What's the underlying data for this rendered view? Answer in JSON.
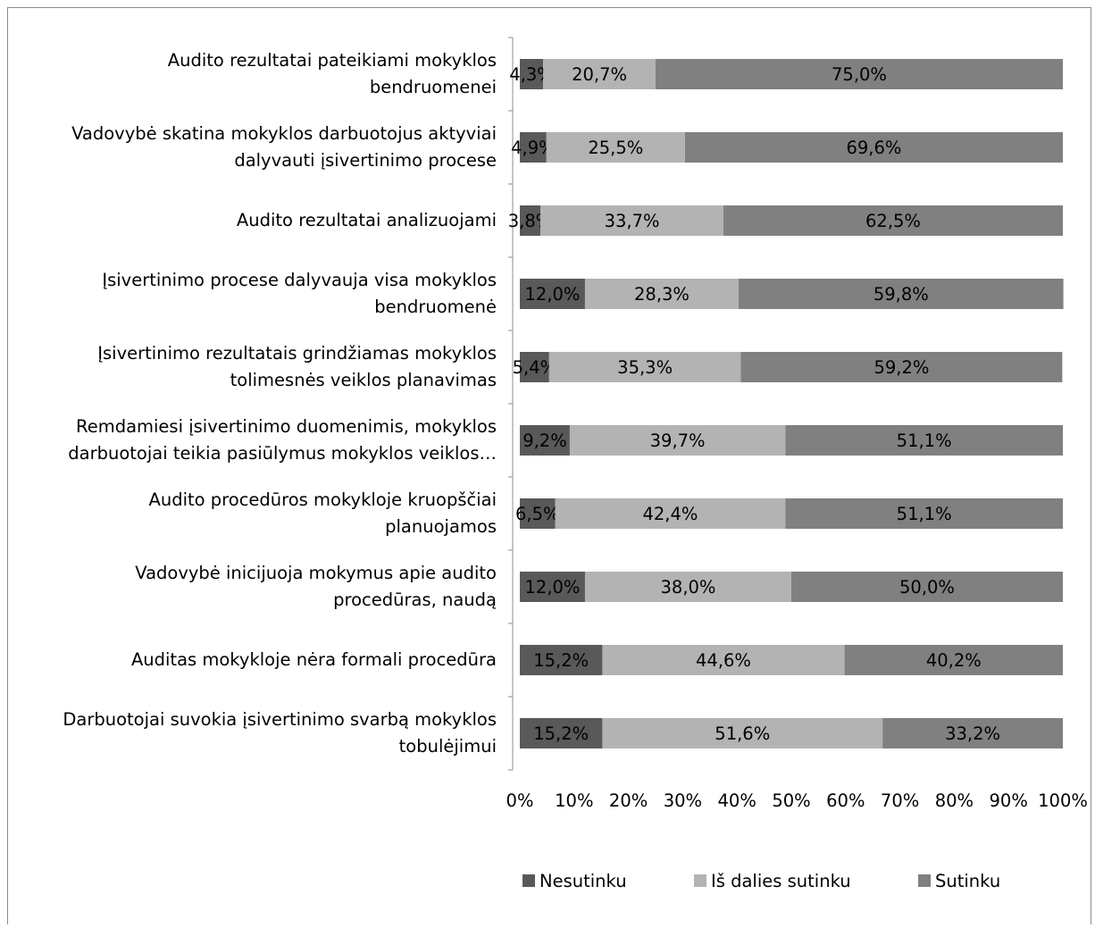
{
  "chart_data": {
    "type": "bar",
    "orientation": "horizontal",
    "stacked": "percent",
    "categories": [
      [
        "Audito rezultatai pateikiami mokyklos",
        "bendruomenei"
      ],
      [
        "Vadovybė skatina mokyklos darbuotojus aktyviai",
        "dalyvauti įsivertinimo procese"
      ],
      [
        "Audito rezultatai analizuojami"
      ],
      [
        "Įsivertinimo procese dalyvauja visa mokyklos",
        "bendruomenė"
      ],
      [
        "Įsivertinimo rezultatais grindžiamas mokyklos",
        "tolimesnės veiklos planavimas"
      ],
      [
        "Remdamiesi įsivertinimo duomenimis, mokyklos",
        "darbuotojai teikia pasiūlymus mokyklos veiklos…"
      ],
      [
        "Audito procedūros mokykloje kruopščiai",
        "planuojamos"
      ],
      [
        "Vadovybė inicijuoja mokymus apie audito",
        "procedūras, naudą"
      ],
      [
        "Auditas mokykloje nėra formali procedūra"
      ],
      [
        "Darbuotojai suvokia įsivertinimo svarbą mokyklos",
        "tobulėjimui"
      ]
    ],
    "series": [
      {
        "name": "Nesutinku",
        "color": "#595959",
        "values": [
          4.3,
          4.9,
          3.8,
          12.0,
          5.4,
          9.2,
          6.5,
          12.0,
          15.2,
          15.2
        ],
        "labels": [
          "4,3%",
          "4,9%",
          "3,8%",
          "12,0%",
          "5,4%",
          "9,2%",
          "6,5%",
          "12,0%",
          "15,2%",
          "15,2%"
        ]
      },
      {
        "name": "Iš dalies sutinku",
        "color": "#b3b3b3",
        "values": [
          20.7,
          25.5,
          33.7,
          28.3,
          35.3,
          39.7,
          42.4,
          38.0,
          44.6,
          51.6
        ],
        "labels": [
          "20,7%",
          "25,5%",
          "33,7%",
          "28,3%",
          "35,3%",
          "39,7%",
          "42,4%",
          "38,0%",
          "44,6%",
          "51,6%"
        ]
      },
      {
        "name": "Sutinku",
        "color": "#808080",
        "values": [
          75.0,
          69.6,
          62.5,
          59.8,
          59.2,
          51.1,
          51.1,
          50.0,
          40.2,
          33.2
        ],
        "labels": [
          "75,0%",
          "69,6%",
          "62,5%",
          "59,8%",
          "59,2%",
          "51,1%",
          "51,1%",
          "50,0%",
          "40,2%",
          "33,2%"
        ]
      }
    ],
    "xlim": [
      0,
      100
    ],
    "xticks": [
      "0%",
      "10%",
      "20%",
      "30%",
      "40%",
      "50%",
      "60%",
      "70%",
      "80%",
      "90%",
      "100%"
    ],
    "legend_position": "bottom",
    "grid": false
  }
}
